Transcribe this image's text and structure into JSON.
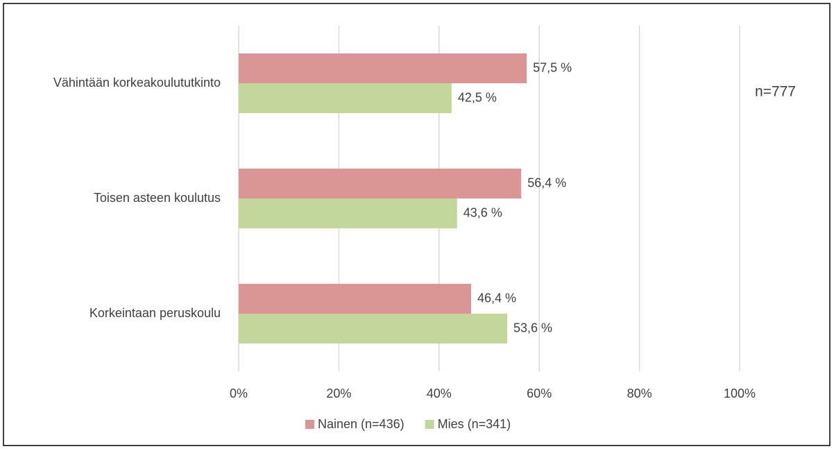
{
  "chart_data": {
    "type": "bar",
    "orientation": "horizontal",
    "categories": [
      "Vähintään korkeakoulututkinto",
      "Toisen asteen koulutus",
      "Korkeintaan peruskoulu"
    ],
    "series": [
      {
        "name": "Nainen (n=436)",
        "color": "#d99694",
        "values": [
          57.5,
          56.4,
          46.4
        ],
        "value_labels": [
          "57,5 %",
          "56,4 %",
          "46,4 %"
        ]
      },
      {
        "name": "Mies (n=341)",
        "color": "#c3d69b",
        "values": [
          42.5,
          43.6,
          53.6
        ],
        "value_labels": [
          "42,5 %",
          "43,6 %",
          "53,6 %"
        ]
      }
    ],
    "xlim": [
      0,
      100
    ],
    "xticks": [
      {
        "value": 0,
        "label": "0%"
      },
      {
        "value": 20,
        "label": "20%"
      },
      {
        "value": 40,
        "label": "40%"
      },
      {
        "value": 60,
        "label": "60%"
      },
      {
        "value": 80,
        "label": "80%"
      },
      {
        "value": 100,
        "label": "100%"
      }
    ],
    "grid": true,
    "legend": "bottom",
    "annotation": "n=777"
  }
}
